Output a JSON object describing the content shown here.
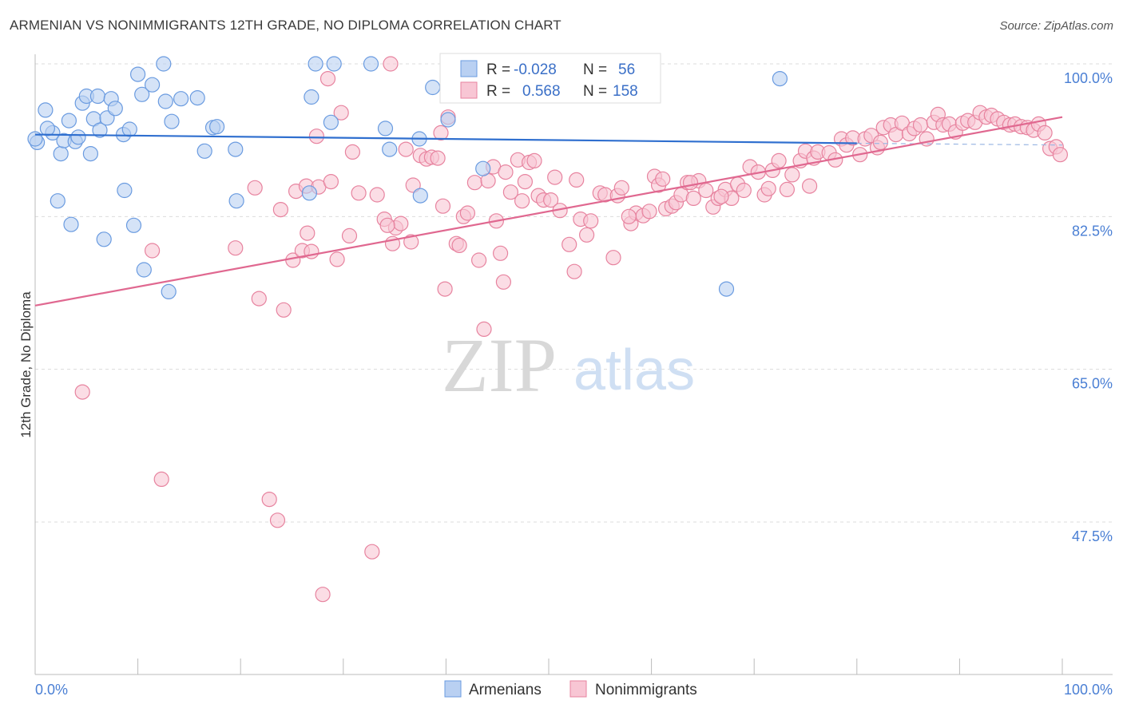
{
  "title": "ARMENIAN VS NONIMMIGRANTS 12TH GRADE, NO DIPLOMA CORRELATION CHART",
  "source": "Source: ZipAtlas.com",
  "watermark": {
    "zip": "ZIP",
    "atlas": "atlas"
  },
  "chart_data": {
    "type": "scatter",
    "ylabel": "12th Grade, No Diploma",
    "xlim": [
      0,
      100
    ],
    "ylim": [
      30,
      102
    ],
    "x_tick_labels": {
      "left": "0.0%",
      "right": "100.0%"
    },
    "y_ticks": [
      {
        "value": 100.0,
        "label": "100.0%"
      },
      {
        "value": 82.5,
        "label": "82.5%"
      },
      {
        "value": 65.0,
        "label": "65.0%"
      },
      {
        "value": 47.5,
        "label": "47.5%"
      }
    ],
    "grid": true,
    "legend_position": "top-center",
    "stats": [
      {
        "r_label": "R =",
        "r_value": "-0.028",
        "n_label": "N =",
        "n_value": "56"
      },
      {
        "r_label": "R =",
        "r_value": "0.568",
        "n_label": "N =",
        "n_value": "158"
      }
    ],
    "series": [
      {
        "name": "Armenians",
        "color": "#6a9be0",
        "fill": "#b9d0f2",
        "trend": {
          "x0": 0,
          "y0": 91.9,
          "x1": 80,
          "y1": 90.9,
          "dash_x1": 100,
          "dash_y1": 90.7
        },
        "points": [
          [
            0.2,
            91.0
          ],
          [
            1.0,
            94.7
          ],
          [
            1.7,
            92.1
          ],
          [
            1.2,
            92.6
          ],
          [
            2.2,
            84.3
          ],
          [
            2.5,
            89.7
          ],
          [
            2.8,
            91.2
          ],
          [
            3.3,
            93.5
          ],
          [
            3.5,
            81.6
          ],
          [
            3.9,
            91.1
          ],
          [
            4.2,
            91.6
          ],
          [
            4.6,
            95.5
          ],
          [
            5.0,
            96.3
          ],
          [
            5.4,
            89.7
          ],
          [
            5.7,
            93.7
          ],
          [
            6.1,
            96.3
          ],
          [
            6.3,
            92.4
          ],
          [
            6.7,
            79.9
          ],
          [
            7.0,
            93.8
          ],
          [
            7.4,
            96.0
          ],
          [
            7.8,
            94.9
          ],
          [
            8.6,
            91.9
          ],
          [
            8.7,
            85.5
          ],
          [
            9.2,
            92.5
          ],
          [
            9.6,
            81.5
          ],
          [
            10.0,
            98.8
          ],
          [
            10.4,
            96.5
          ],
          [
            10.6,
            76.4
          ],
          [
            11.4,
            97.6
          ],
          [
            12.7,
            95.7
          ],
          [
            12.5,
            100.0
          ],
          [
            13.0,
            73.9
          ],
          [
            13.3,
            93.4
          ],
          [
            14.2,
            96.0
          ],
          [
            15.8,
            96.1
          ],
          [
            16.5,
            90.0
          ],
          [
            17.3,
            92.7
          ],
          [
            17.7,
            92.8
          ],
          [
            19.6,
            84.3
          ],
          [
            19.5,
            90.2
          ],
          [
            26.9,
            96.2
          ],
          [
            26.7,
            85.2
          ],
          [
            27.3,
            100.0
          ],
          [
            28.8,
            93.3
          ],
          [
            29.1,
            100.0
          ],
          [
            32.7,
            100.0
          ],
          [
            34.1,
            92.6
          ],
          [
            34.5,
            90.2
          ],
          [
            37.4,
            91.4
          ],
          [
            37.5,
            84.9
          ],
          [
            38.7,
            97.3
          ],
          [
            40.2,
            93.6
          ],
          [
            43.6,
            88.0
          ],
          [
            67.3,
            74.2
          ],
          [
            72.5,
            98.3
          ],
          [
            0.0,
            91.4
          ]
        ]
      },
      {
        "name": "Nonimmigrants",
        "color": "#e7839f",
        "fill": "#f8c6d4",
        "trend": {
          "x0": 0,
          "y0": 72.3,
          "x1": 100,
          "y1": 93.9
        },
        "points": [
          [
            4.6,
            62.4
          ],
          [
            11.4,
            78.6
          ],
          [
            12.3,
            52.4
          ],
          [
            19.5,
            78.9
          ],
          [
            21.4,
            85.8
          ],
          [
            21.8,
            73.1
          ],
          [
            22.8,
            50.1
          ],
          [
            23.6,
            47.7
          ],
          [
            24.2,
            71.8
          ],
          [
            25.1,
            77.5
          ],
          [
            25.4,
            85.4
          ],
          [
            26.0,
            78.6
          ],
          [
            26.4,
            86.0
          ],
          [
            26.9,
            78.5
          ],
          [
            27.4,
            91.7
          ],
          [
            27.6,
            85.9
          ],
          [
            28.0,
            39.2
          ],
          [
            28.5,
            98.3
          ],
          [
            28.8,
            86.5
          ],
          [
            29.4,
            77.6
          ],
          [
            29.8,
            94.4
          ],
          [
            30.6,
            80.3
          ],
          [
            30.9,
            89.9
          ],
          [
            31.5,
            85.2
          ],
          [
            32.8,
            44.1
          ],
          [
            33.3,
            85.0
          ],
          [
            34.0,
            82.2
          ],
          [
            34.6,
            100.0
          ],
          [
            34.8,
            79.4
          ],
          [
            35.1,
            81.2
          ],
          [
            35.6,
            81.7
          ],
          [
            36.1,
            90.2
          ],
          [
            36.8,
            86.1
          ],
          [
            37.5,
            89.5
          ],
          [
            38.1,
            89.1
          ],
          [
            38.6,
            89.3
          ],
          [
            39.2,
            89.2
          ],
          [
            39.5,
            92.1
          ],
          [
            39.9,
            74.2
          ],
          [
            40.2,
            93.9
          ],
          [
            41.0,
            79.4
          ],
          [
            41.3,
            79.2
          ],
          [
            41.7,
            82.5
          ],
          [
            42.1,
            82.9
          ],
          [
            42.8,
            86.4
          ],
          [
            43.2,
            77.5
          ],
          [
            43.7,
            69.6
          ],
          [
            44.6,
            88.2
          ],
          [
            44.9,
            82.0
          ],
          [
            45.3,
            78.3
          ],
          [
            45.6,
            75.0
          ],
          [
            45.8,
            87.6
          ],
          [
            46.3,
            85.3
          ],
          [
            47.0,
            89.0
          ],
          [
            47.4,
            84.3
          ],
          [
            47.7,
            86.5
          ],
          [
            48.1,
            88.7
          ],
          [
            49.0,
            84.9
          ],
          [
            49.5,
            84.4
          ],
          [
            50.2,
            84.4
          ],
          [
            50.6,
            87.0
          ],
          [
            51.1,
            83.2
          ],
          [
            52.0,
            79.3
          ],
          [
            52.5,
            76.2
          ],
          [
            53.1,
            82.2
          ],
          [
            53.7,
            80.4
          ],
          [
            54.1,
            82.0
          ],
          [
            55.0,
            85.2
          ],
          [
            55.5,
            85.0
          ],
          [
            56.3,
            77.8
          ],
          [
            56.7,
            84.9
          ],
          [
            57.1,
            85.8
          ],
          [
            58.0,
            81.7
          ],
          [
            58.5,
            82.9
          ],
          [
            59.2,
            82.6
          ],
          [
            59.8,
            83.1
          ],
          [
            60.3,
            87.1
          ],
          [
            60.7,
            86.1
          ],
          [
            61.4,
            83.4
          ],
          [
            62.0,
            83.7
          ],
          [
            62.4,
            84.1
          ],
          [
            62.9,
            85.0
          ],
          [
            63.5,
            86.4
          ],
          [
            64.1,
            84.6
          ],
          [
            64.6,
            86.6
          ],
          [
            65.3,
            85.5
          ],
          [
            66.0,
            83.6
          ],
          [
            66.5,
            84.6
          ],
          [
            67.2,
            85.6
          ],
          [
            67.8,
            84.6
          ],
          [
            68.4,
            86.2
          ],
          [
            69.0,
            85.5
          ],
          [
            69.6,
            88.2
          ],
          [
            70.4,
            87.6
          ],
          [
            71.0,
            85.0
          ],
          [
            71.8,
            87.8
          ],
          [
            72.4,
            88.9
          ],
          [
            73.2,
            85.6
          ],
          [
            73.7,
            87.3
          ],
          [
            74.5,
            88.9
          ],
          [
            75.0,
            90.0
          ],
          [
            75.8,
            89.2
          ],
          [
            76.2,
            89.9
          ],
          [
            77.3,
            89.8
          ],
          [
            77.9,
            89.0
          ],
          [
            78.5,
            91.4
          ],
          [
            79.0,
            90.7
          ],
          [
            79.6,
            91.5
          ],
          [
            80.3,
            89.6
          ],
          [
            80.8,
            91.4
          ],
          [
            81.4,
            91.8
          ],
          [
            82.0,
            90.4
          ],
          [
            82.6,
            92.7
          ],
          [
            83.3,
            93.0
          ],
          [
            83.8,
            91.9
          ],
          [
            84.4,
            93.2
          ],
          [
            85.1,
            92.0
          ],
          [
            85.6,
            92.6
          ],
          [
            86.2,
            93.0
          ],
          [
            86.8,
            91.4
          ],
          [
            87.5,
            93.3
          ],
          [
            87.9,
            94.2
          ],
          [
            88.4,
            93.0
          ],
          [
            89.0,
            93.1
          ],
          [
            89.6,
            92.2
          ],
          [
            90.3,
            93.2
          ],
          [
            90.8,
            93.5
          ],
          [
            91.5,
            93.3
          ],
          [
            92.0,
            94.4
          ],
          [
            92.6,
            93.9
          ],
          [
            93.1,
            94.1
          ],
          [
            93.7,
            93.7
          ],
          [
            94.3,
            93.3
          ],
          [
            94.9,
            93.0
          ],
          [
            95.4,
            93.1
          ],
          [
            96.0,
            92.8
          ],
          [
            96.6,
            92.7
          ],
          [
            97.2,
            92.4
          ],
          [
            97.7,
            93.1
          ],
          [
            98.3,
            92.1
          ],
          [
            98.8,
            90.3
          ],
          [
            99.4,
            90.5
          ],
          [
            99.8,
            89.6
          ],
          [
            66.8,
            84.8
          ],
          [
            57.8,
            82.5
          ],
          [
            48.6,
            88.9
          ],
          [
            52.7,
            86.7
          ],
          [
            61.1,
            86.8
          ],
          [
            63.8,
            86.4
          ],
          [
            71.4,
            85.7
          ],
          [
            75.4,
            86.0
          ],
          [
            39.7,
            83.7
          ],
          [
            44.1,
            86.6
          ],
          [
            34.3,
            81.5
          ],
          [
            36.6,
            79.6
          ],
          [
            26.5,
            80.6
          ],
          [
            23.9,
            83.3
          ],
          [
            82.3,
            91.0
          ]
        ]
      }
    ]
  }
}
